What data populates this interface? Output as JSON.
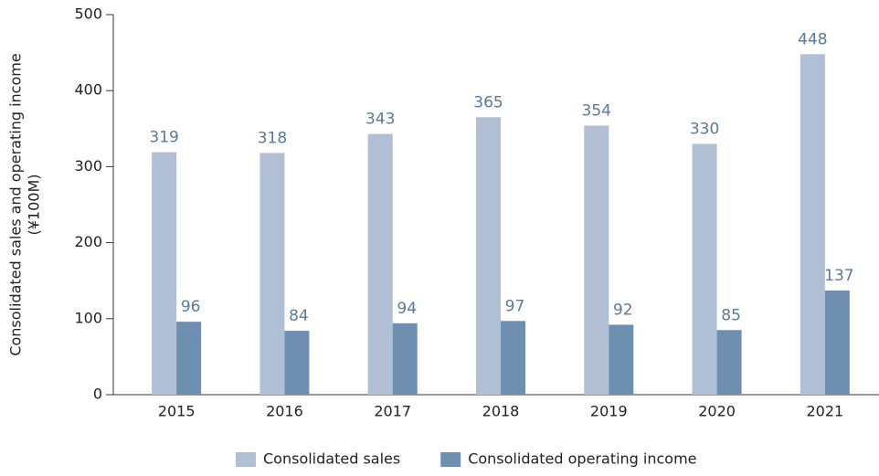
{
  "chart_data": {
    "type": "bar",
    "y_label": [
      "Consolidated sales and operating income",
      "(¥100M)"
    ],
    "categories": [
      "2015",
      "2016",
      "2017",
      "2018",
      "2019",
      "2020",
      "2021"
    ],
    "series": [
      {
        "name": "Consolidated sales",
        "color": "#b0bfd4",
        "values": [
          319,
          318,
          343,
          365,
          354,
          330,
          448
        ]
      },
      {
        "name": "Consolidated operating income",
        "color": "#6f8fb0",
        "values": [
          96,
          84,
          94,
          97,
          92,
          85,
          137
        ]
      }
    ],
    "ylim": [
      0,
      500
    ],
    "yticks": [
      0,
      100,
      200,
      300,
      400,
      500
    ],
    "grid": false,
    "legend": "bottom"
  }
}
